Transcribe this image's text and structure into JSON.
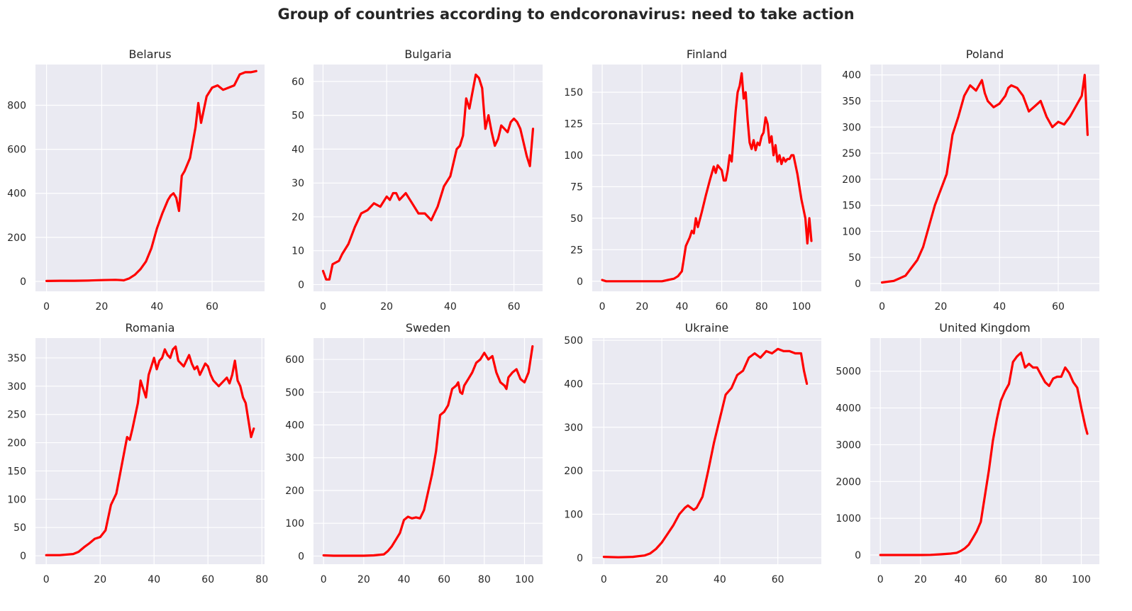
{
  "figure": {
    "title": "Group of countries according to endcoronavirus: need to take action"
  },
  "style": {
    "line_color": "#ff0000",
    "panel_background": "#eaeaf2",
    "grid_color": "#ffffff"
  },
  "chart_data": [
    {
      "type": "line",
      "title": "Belarus",
      "xlim": [
        -4,
        79
      ],
      "ylim": [
        -45,
        985
      ],
      "xticks": [
        0,
        20,
        40,
        60
      ],
      "yticks": [
        0,
        200,
        400,
        600,
        800
      ],
      "grid": true,
      "series": [
        {
          "x": [
            0,
            5,
            10,
            15,
            20,
            25,
            27,
            28,
            30,
            32,
            34,
            36,
            38,
            40,
            42,
            44,
            45,
            46,
            47,
            48,
            49,
            50,
            52,
            54,
            55,
            56,
            58,
            60,
            62,
            64,
            66,
            68,
            70,
            72,
            74,
            76
          ],
          "y": [
            2,
            3,
            3,
            4,
            6,
            7,
            6,
            5,
            14,
            30,
            55,
            90,
            150,
            240,
            310,
            370,
            390,
            400,
            380,
            320,
            480,
            500,
            560,
            700,
            810,
            720,
            840,
            880,
            890,
            870,
            880,
            890,
            940,
            950,
            950,
            955
          ]
        }
      ]
    },
    {
      "type": "line",
      "title": "Bulgaria",
      "xlim": [
        -3,
        69
      ],
      "ylim": [
        -2,
        65
      ],
      "xticks": [
        0,
        20,
        40,
        60
      ],
      "yticks": [
        0,
        10,
        20,
        30,
        40,
        50,
        60
      ],
      "grid": true,
      "series": [
        {
          "x": [
            0,
            1,
            2,
            3,
            4,
            5,
            6,
            8,
            10,
            12,
            14,
            16,
            18,
            20,
            21,
            22,
            23,
            24,
            26,
            28,
            30,
            32,
            33,
            34,
            35,
            36,
            38,
            40,
            42,
            43,
            44,
            45,
            46,
            47,
            48,
            49,
            50,
            51,
            52,
            53,
            54,
            55,
            56,
            57,
            58,
            59,
            60,
            61,
            62,
            63,
            64,
            65,
            66
          ],
          "y": [
            4,
            1.5,
            1.5,
            6,
            6.5,
            7,
            9,
            12,
            17,
            21,
            22,
            24,
            23,
            26,
            25,
            27,
            27,
            25,
            27,
            24,
            21,
            21,
            20,
            19,
            21,
            23,
            29,
            32,
            40,
            41,
            44,
            55,
            52,
            57,
            62,
            61,
            58,
            46,
            50,
            45,
            41,
            43,
            47,
            46,
            45,
            48,
            49,
            48,
            46,
            42,
            38,
            35,
            46
          ]
        }
      ]
    },
    {
      "type": "line",
      "title": "Finland",
      "xlim": [
        -5,
        110
      ],
      "ylim": [
        -8,
        172
      ],
      "xticks": [
        0,
        20,
        40,
        60,
        80,
        100
      ],
      "yticks": [
        0,
        25,
        50,
        75,
        100,
        125,
        150
      ],
      "grid": true,
      "series": [
        {
          "x": [
            0,
            2,
            5,
            10,
            15,
            20,
            25,
            30,
            33,
            36,
            38,
            40,
            42,
            44,
            45,
            46,
            47,
            48,
            50,
            52,
            54,
            56,
            57,
            58,
            60,
            61,
            62,
            63,
            64,
            65,
            66,
            67,
            68,
            69,
            70,
            71,
            72,
            73,
            74,
            75,
            76,
            77,
            78,
            79,
            80,
            81,
            82,
            83,
            84,
            85,
            86,
            87,
            88,
            89,
            90,
            91,
            92,
            93,
            94,
            95,
            96,
            98,
            100,
            102,
            103,
            104,
            105
          ],
          "y": [
            1,
            0,
            0,
            0,
            0,
            0,
            0,
            0,
            1,
            2,
            4,
            8,
            28,
            35,
            40,
            38,
            50,
            43,
            55,
            68,
            80,
            91,
            86,
            92,
            88,
            80,
            80,
            88,
            100,
            95,
            115,
            135,
            150,
            155,
            165,
            145,
            150,
            128,
            110,
            105,
            112,
            104,
            110,
            108,
            115,
            118,
            130,
            125,
            110,
            115,
            100,
            108,
            95,
            100,
            93,
            98,
            95,
            97,
            97,
            100,
            100,
            85,
            65,
            50,
            30,
            50,
            32
          ]
        }
      ]
    },
    {
      "type": "line",
      "title": "Poland",
      "xlim": [
        -4,
        74
      ],
      "ylim": [
        -15,
        420
      ],
      "xticks": [
        0,
        20,
        40,
        60
      ],
      "yticks": [
        0,
        50,
        100,
        150,
        200,
        250,
        300,
        350,
        400
      ],
      "grid": true,
      "series": [
        {
          "x": [
            0,
            4,
            8,
            10,
            12,
            14,
            16,
            18,
            20,
            22,
            24,
            26,
            28,
            30,
            32,
            34,
            35,
            36,
            38,
            40,
            42,
            43,
            44,
            46,
            48,
            50,
            52,
            54,
            56,
            58,
            60,
            62,
            64,
            66,
            68,
            69,
            70
          ],
          "y": [
            2,
            5,
            15,
            30,
            45,
            70,
            110,
            150,
            180,
            210,
            285,
            320,
            360,
            380,
            370,
            390,
            365,
            350,
            338,
            345,
            360,
            375,
            380,
            375,
            360,
            330,
            340,
            350,
            320,
            300,
            310,
            305,
            320,
            340,
            360,
            400,
            285
          ]
        }
      ]
    },
    {
      "type": "line",
      "title": "Romania",
      "xlim": [
        -4,
        81
      ],
      "ylim": [
        -15,
        385
      ],
      "xticks": [
        0,
        20,
        40,
        60,
        80
      ],
      "yticks": [
        0,
        50,
        100,
        150,
        200,
        250,
        300,
        350
      ],
      "grid": true,
      "series": [
        {
          "x": [
            0,
            5,
            10,
            12,
            14,
            16,
            18,
            20,
            22,
            24,
            26,
            28,
            30,
            31,
            32,
            34,
            35,
            36,
            37,
            38,
            39,
            40,
            41,
            42,
            43,
            44,
            45,
            46,
            47,
            48,
            49,
            50,
            51,
            52,
            53,
            54,
            55,
            56,
            57,
            58,
            59,
            60,
            61,
            62,
            63,
            64,
            65,
            66,
            67,
            68,
            69,
            70,
            71,
            72,
            73,
            74,
            75,
            76,
            77
          ],
          "y": [
            1,
            1,
            3,
            7,
            15,
            22,
            30,
            33,
            45,
            90,
            110,
            160,
            210,
            205,
            225,
            270,
            310,
            295,
            280,
            320,
            335,
            350,
            330,
            345,
            350,
            365,
            355,
            350,
            365,
            370,
            345,
            340,
            335,
            345,
            355,
            340,
            330,
            335,
            320,
            330,
            340,
            335,
            320,
            310,
            305,
            300,
            305,
            310,
            315,
            305,
            320,
            345,
            310,
            300,
            280,
            270,
            240,
            210,
            225
          ]
        }
      ]
    },
    {
      "type": "line",
      "title": "Sweden",
      "xlim": [
        -5,
        109
      ],
      "ylim": [
        -25,
        665
      ],
      "xticks": [
        0,
        20,
        40,
        60,
        80,
        100
      ],
      "yticks": [
        0,
        100,
        200,
        300,
        400,
        500,
        600
      ],
      "grid": true,
      "series": [
        {
          "x": [
            0,
            5,
            10,
            15,
            20,
            25,
            30,
            32,
            34,
            36,
            38,
            40,
            42,
            44,
            46,
            48,
            50,
            52,
            54,
            56,
            58,
            60,
            62,
            64,
            66,
            67,
            68,
            69,
            70,
            72,
            74,
            76,
            78,
            80,
            82,
            84,
            86,
            88,
            90,
            91,
            92,
            94,
            96,
            98,
            100,
            102,
            103,
            104
          ],
          "y": [
            2,
            1,
            1,
            1,
            1,
            2,
            5,
            15,
            30,
            50,
            70,
            110,
            120,
            115,
            118,
            115,
            140,
            195,
            250,
            320,
            430,
            440,
            460,
            510,
            520,
            530,
            500,
            495,
            520,
            540,
            560,
            590,
            600,
            620,
            600,
            610,
            560,
            530,
            520,
            510,
            545,
            560,
            570,
            540,
            530,
            560,
            600,
            640
          ]
        }
      ]
    },
    {
      "type": "line",
      "title": "Ukraine",
      "xlim": [
        -4,
        75
      ],
      "ylim": [
        -15,
        505
      ],
      "xticks": [
        0,
        20,
        40,
        60
      ],
      "yticks": [
        0,
        100,
        200,
        300,
        400,
        500
      ],
      "grid": true,
      "series": [
        {
          "x": [
            0,
            5,
            10,
            14,
            16,
            18,
            20,
            22,
            24,
            26,
            28,
            29,
            30,
            31,
            32,
            34,
            36,
            38,
            40,
            42,
            44,
            46,
            48,
            50,
            52,
            54,
            56,
            58,
            60,
            62,
            64,
            66,
            68,
            69,
            70
          ],
          "y": [
            2,
            1,
            2,
            5,
            10,
            20,
            35,
            55,
            75,
            100,
            115,
            120,
            115,
            110,
            115,
            140,
            200,
            265,
            320,
            375,
            390,
            420,
            430,
            460,
            470,
            460,
            475,
            470,
            480,
            475,
            475,
            470,
            470,
            430,
            400
          ]
        }
      ]
    },
    {
      "type": "line",
      "title": "United Kingdom",
      "xlim": [
        -5,
        109
      ],
      "ylim": [
        -250,
        5900
      ],
      "xticks": [
        0,
        20,
        40,
        60,
        80,
        100
      ],
      "yticks": [
        0,
        1000,
        2000,
        3000,
        4000,
        5000
      ],
      "grid": true,
      "series": [
        {
          "x": [
            0,
            5,
            10,
            15,
            20,
            25,
            30,
            35,
            38,
            40,
            42,
            44,
            46,
            48,
            50,
            52,
            54,
            56,
            58,
            60,
            62,
            64,
            66,
            68,
            70,
            72,
            74,
            76,
            78,
            80,
            82,
            84,
            86,
            88,
            90,
            92,
            94,
            96,
            98,
            100,
            102,
            103
          ],
          "y": [
            0,
            0,
            0,
            0,
            0,
            5,
            20,
            40,
            60,
            110,
            180,
            280,
            460,
            650,
            900,
            1600,
            2300,
            3100,
            3700,
            4200,
            4450,
            4650,
            5250,
            5400,
            5500,
            5100,
            5200,
            5100,
            5100,
            4900,
            4700,
            4600,
            4800,
            4850,
            4850,
            5100,
            4950,
            4700,
            4550,
            4000,
            3500,
            3300
          ]
        }
      ]
    }
  ]
}
